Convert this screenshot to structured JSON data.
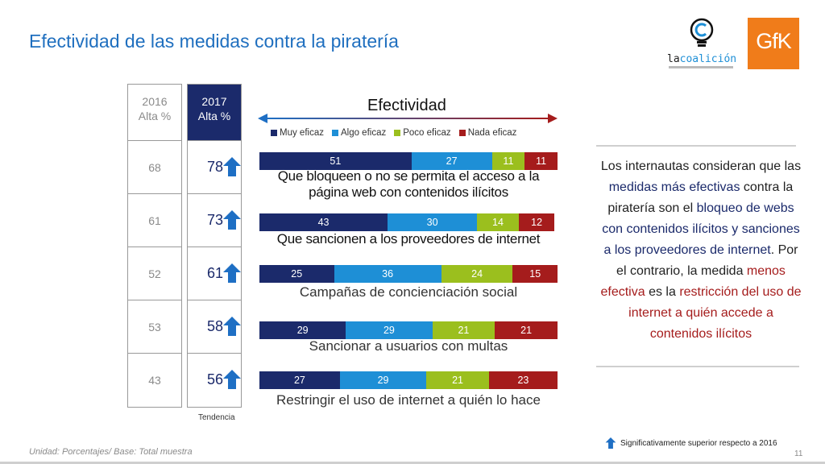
{
  "title": "Efectividad de las medidas contra la piratería",
  "logos": {
    "coalicion_pre": "la",
    "coalicion_main": "coalición"
  },
  "table": {
    "header_2016": [
      "2016",
      "Alta %"
    ],
    "header_2017": [
      "2017",
      "Alta %"
    ],
    "values_2016": [
      "68",
      "61",
      "52",
      "53",
      "43"
    ],
    "values_2017": [
      "78",
      "73",
      "61",
      "58",
      "56"
    ],
    "tendencia": "Tendencia"
  },
  "effectiveness_label": "Efectividad",
  "colors": {
    "muy": "#1b2a6b",
    "algo": "#1e8fd6",
    "poco": "#9bbf1e",
    "nada": "#a51c1c",
    "title": "#1f6fbf",
    "arrow": "#1e6fc4"
  },
  "chart_data": {
    "type": "bar",
    "stacked": true,
    "orientation": "horizontal",
    "legend_position": "top",
    "categories": [
      "Que bloqueen o no se permita el acceso a la página web con contenidos ilícitos",
      "Que sancionen a los proveedores de internet",
      "Campañas de concienciación social",
      "Sancionar a usuarios con multas",
      "Restringir el uso de internet a quién lo hace"
    ],
    "series": [
      {
        "name": "Muy eficaz",
        "values": [
          51,
          43,
          25,
          29,
          27
        ]
      },
      {
        "name": "Algo eficaz",
        "values": [
          27,
          30,
          36,
          29,
          29
        ]
      },
      {
        "name": "Poco eficaz",
        "values": [
          11,
          14,
          24,
          21,
          21
        ]
      },
      {
        "name": "Nada eficaz",
        "values": [
          11,
          12,
          15,
          21,
          23
        ]
      }
    ],
    "xlim": [
      0,
      100
    ]
  },
  "side_text": {
    "p1": "Los internautas consideran que las ",
    "b1": "medidas más efectivas",
    "p2": " contra la piratería son el ",
    "b2": "bloqueo de webs con contenidos ilícitos y sanciones a los proveedores de internet",
    "p3": ". Por el contrario, la medida ",
    "r1": "menos efectiva",
    "p4": " es la ",
    "r2": "restricción del uso de internet a quién accede a contenidos ilícitos"
  },
  "footer": {
    "unit_note": "Unidad: Porcentajes/ Base: Total muestra",
    "sig_note": "Significativamente superior respecto a 2016",
    "page": "11"
  }
}
